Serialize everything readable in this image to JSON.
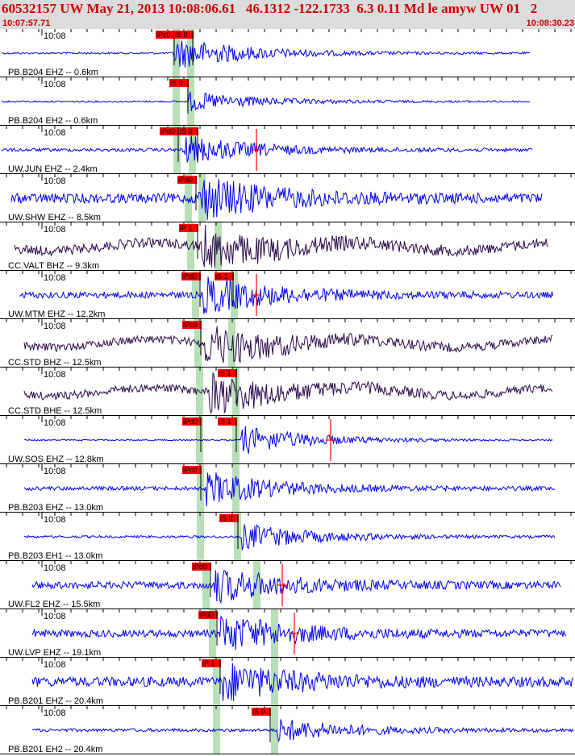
{
  "header": {
    "title": "60532157 UW May 21, 2013 10:08:06.61   46.1312 -122.1733  6.3 0.11 Md le amyw UW 01   2",
    "time_start": "10:07:57.71",
    "time_end": "10:08:30.23"
  },
  "colors": {
    "short_period_trace": "#0000ee",
    "broadband_trace": "#2a0a4a",
    "pick_box": "#ff0000",
    "pick_window": "#b8e0b8",
    "header_text": "#cc0000",
    "header_bg": "#dcdcdc"
  },
  "traces": [
    {
      "label": "PB.B204 EHZ -- 0.6km",
      "time_tick": "10:08",
      "picks": [
        {
          "text": "iPc0"
        },
        {
          "text": "iS 0"
        }
      ],
      "coda_mark": false,
      "type": "sp"
    },
    {
      "label": "PB.B204 EH2 -- 0.6km",
      "time_tick": "10:08",
      "picks": [
        {
          "text": "iS 0"
        }
      ],
      "coda_mark": false,
      "type": "sp"
    },
    {
      "label": "UW.JUN EHZ -- 2.4km",
      "time_tick": "10:08",
      "picks": [
        {
          "text": "iPd0"
        },
        {
          "text": "iS 0"
        }
      ],
      "coda_mark": true,
      "type": "sp"
    },
    {
      "label": "UW.SHW EHZ -- 8.5km",
      "time_tick": "10:08",
      "picks": [
        {
          "text": "iPd0"
        }
      ],
      "coda_mark": false,
      "type": "sp"
    },
    {
      "label": "CC.VALT BHZ -- 9.3km",
      "time_tick": "10:08",
      "picks": [
        {
          "text": "iP 1"
        }
      ],
      "coda_mark": false,
      "type": "bb"
    },
    {
      "label": "UW.MTM EHZ -- 12.2km",
      "time_tick": "10:08",
      "picks": [
        {
          "text": "iPd0"
        },
        {
          "text": "iS 1"
        }
      ],
      "coda_mark": true,
      "type": "sp"
    },
    {
      "label": "CC.STD BHZ -- 12.5km",
      "time_tick": "10:08",
      "picks": [
        {
          "text": "iPc0"
        }
      ],
      "coda_mark": false,
      "type": "bb"
    },
    {
      "label": "CC.STD BHE -- 12.5km",
      "time_tick": "10:08",
      "picks": [
        {
          "text": "iS 1"
        }
      ],
      "coda_mark": false,
      "type": "bb"
    },
    {
      "label": "UW.SOS EHZ -- 12.8km",
      "time_tick": "10:08",
      "picks": [
        {
          "text": "iPd0"
        },
        {
          "text": "iS 1"
        }
      ],
      "coda_mark": true,
      "type": "sp"
    },
    {
      "label": "PB.B203 EHZ -- 13.0km",
      "time_tick": "10:08",
      "picks": [
        {
          "text": "iPc0"
        }
      ],
      "coda_mark": false,
      "type": "sp"
    },
    {
      "label": "PB.B203 EH1 -- 13.0km",
      "time_tick": "10:08",
      "picks": [
        {
          "text": "iS 0"
        }
      ],
      "coda_mark": false,
      "type": "sp"
    },
    {
      "label": "UW.FL2 EHZ -- 15.5km",
      "time_tick": "10:08",
      "picks": [
        {
          "text": "iPd0"
        }
      ],
      "coda_mark": true,
      "type": "sp"
    },
    {
      "label": "UW.LVP EHZ -- 19.1km",
      "time_tick": "10:08",
      "picks": [
        {
          "text": "iPd0"
        }
      ],
      "coda_mark": true,
      "type": "sp"
    },
    {
      "label": "PB.B201 EHZ -- 20.4km",
      "time_tick": "10:08",
      "picks": [
        {
          "text": "iP 1"
        }
      ],
      "coda_mark": false,
      "type": "sp"
    },
    {
      "label": "PB.B201 EH2 -- 20.4km",
      "time_tick": "10:08",
      "picks": [
        {
          "text": "iS 0"
        }
      ],
      "coda_mark": false,
      "type": "sp"
    }
  ]
}
